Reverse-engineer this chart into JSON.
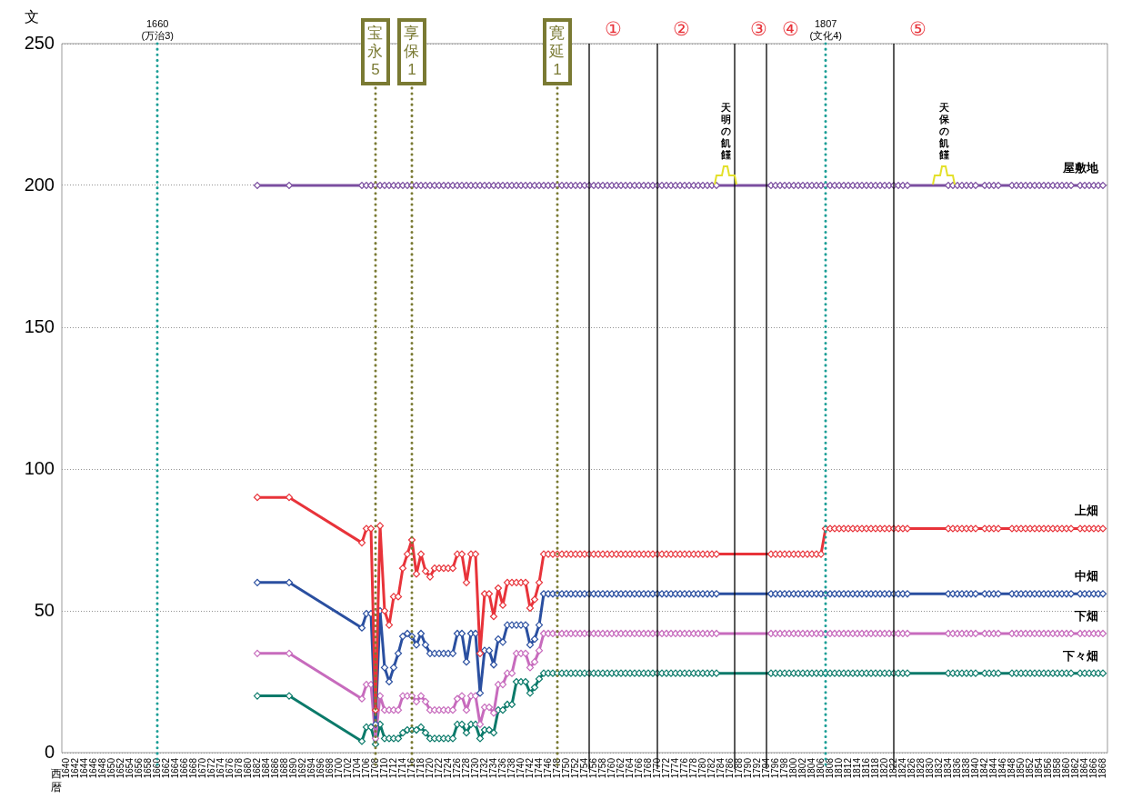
{
  "chart_data": {
    "type": "line",
    "xlabel": "西暦",
    "ylabel": "文",
    "x": [
      1682,
      1689,
      1705,
      1706,
      1707,
      1708,
      1709,
      1710,
      1711,
      1712,
      1713,
      1714,
      1715,
      1716,
      1717,
      1718,
      1719,
      1720,
      1721,
      1722,
      1723,
      1724,
      1725,
      1726,
      1727,
      1728,
      1729,
      1730,
      1731,
      1732,
      1733,
      1734,
      1735,
      1736,
      1737,
      1738,
      1739,
      1740,
      1741,
      1742,
      1743,
      1744,
      1745,
      1746,
      1747,
      1748,
      1749,
      1750,
      1751,
      1752,
      1753,
      1754,
      1755,
      1756,
      1757,
      1758,
      1759,
      1760,
      1761,
      1762,
      1763,
      1764,
      1765,
      1766,
      1767,
      1768,
      1769,
      1770,
      1771,
      1772,
      1773,
      1774,
      1775,
      1776,
      1777,
      1778,
      1779,
      1780,
      1781,
      1782,
      1783,
      1795,
      1796,
      1797,
      1798,
      1799,
      1800,
      1801,
      1802,
      1803,
      1804,
      1805,
      1806,
      1807,
      1808,
      1809,
      1810,
      1811,
      1812,
      1813,
      1814,
      1815,
      1816,
      1817,
      1818,
      1819,
      1820,
      1821,
      1822,
      1823,
      1824,
      1825,
      1834,
      1835,
      1836,
      1837,
      1838,
      1839,
      1840,
      1842,
      1843,
      1844,
      1845,
      1848,
      1849,
      1850,
      1851,
      1852,
      1853,
      1854,
      1855,
      1856,
      1857,
      1858,
      1859,
      1860,
      1861,
      1863,
      1864,
      1865,
      1866,
      1867,
      1868
    ],
    "series": [
      {
        "name": "屋敷地",
        "color": "#7b4ea0",
        "values": [
          200,
          200,
          200,
          200,
          200,
          200,
          200,
          200,
          200,
          200,
          200,
          200,
          200,
          200,
          200,
          200,
          200,
          200,
          200,
          200,
          200,
          200,
          200,
          200,
          200,
          200,
          200,
          200,
          200,
          200,
          200,
          200,
          200,
          200,
          200,
          200,
          200,
          200,
          200,
          200,
          200,
          200,
          200,
          200,
          200,
          200,
          200,
          200,
          200,
          200,
          200,
          200,
          200,
          200,
          200,
          200,
          200,
          200,
          200,
          200,
          200,
          200,
          200,
          200,
          200,
          200,
          200,
          200,
          200,
          200,
          200,
          200,
          200,
          200,
          200,
          200,
          200,
          200,
          200,
          200,
          200,
          200,
          200,
          200,
          200,
          200,
          200,
          200,
          200,
          200,
          200,
          200,
          200,
          200,
          200,
          200,
          200,
          200,
          200,
          200,
          200,
          200,
          200,
          200,
          200,
          200,
          200,
          200,
          200,
          200,
          200,
          200,
          200,
          200,
          200,
          200,
          200,
          200,
          200,
          200,
          200,
          200,
          200,
          200,
          200,
          200,
          200,
          200,
          200,
          200,
          200,
          200,
          200,
          200,
          200,
          200,
          200,
          200,
          200,
          200,
          200,
          200,
          200
        ]
      },
      {
        "name": "上畑",
        "color": "#e8333a",
        "values": [
          90,
          90,
          74,
          79,
          79,
          15,
          80,
          50,
          45,
          55,
          55,
          65,
          70,
          75,
          63,
          70,
          64,
          62,
          65,
          65,
          65,
          65,
          65,
          70,
          70,
          60,
          70,
          70,
          35,
          56,
          56,
          48,
          58,
          52,
          60,
          60,
          60,
          60,
          60,
          51,
          54,
          60,
          70,
          70,
          70,
          70,
          70,
          70,
          70,
          70,
          70,
          70,
          70,
          70,
          70,
          70,
          70,
          70,
          70,
          70,
          70,
          70,
          70,
          70,
          70,
          70,
          70,
          70,
          70,
          70,
          70,
          70,
          70,
          70,
          70,
          70,
          70,
          70,
          70,
          70,
          70,
          70,
          70,
          70,
          70,
          70,
          70,
          70,
          70,
          70,
          70,
          70,
          70,
          79,
          79,
          79,
          79,
          79,
          79,
          79,
          79,
          79,
          79,
          79,
          79,
          79,
          79,
          79,
          79,
          79,
          79,
          79,
          79,
          79,
          79,
          79,
          79,
          79,
          79,
          79,
          79,
          79,
          79,
          79,
          79,
          79,
          79,
          79,
          79,
          79,
          79,
          79,
          79,
          79,
          79,
          79,
          79,
          79,
          79,
          79,
          79,
          79,
          79
        ]
      },
      {
        "name": "中畑",
        "color": "#2a4fa0",
        "values": [
          60,
          60,
          44,
          49,
          49,
          10,
          50,
          30,
          25,
          30,
          35,
          41,
          42,
          41,
          38,
          42,
          38,
          35,
          35,
          35,
          35,
          35,
          35,
          42,
          42,
          32,
          42,
          42,
          21,
          36,
          36,
          31,
          40,
          39,
          45,
          45,
          45,
          45,
          45,
          38,
          40,
          45,
          56,
          56,
          56,
          56,
          56,
          56,
          56,
          56,
          56,
          56,
          56,
          56,
          56,
          56,
          56,
          56,
          56,
          56,
          56,
          56,
          56,
          56,
          56,
          56,
          56,
          56,
          56,
          56,
          56,
          56,
          56,
          56,
          56,
          56,
          56,
          56,
          56,
          56,
          56,
          56,
          56,
          56,
          56,
          56,
          56,
          56,
          56,
          56,
          56,
          56,
          56,
          56,
          56,
          56,
          56,
          56,
          56,
          56,
          56,
          56,
          56,
          56,
          56,
          56,
          56,
          56,
          56,
          56,
          56,
          56,
          56,
          56,
          56,
          56,
          56,
          56,
          56,
          56,
          56,
          56,
          56,
          56,
          56,
          56,
          56,
          56,
          56,
          56,
          56,
          56,
          56,
          56,
          56,
          56,
          56,
          56,
          56,
          56,
          56,
          56,
          56
        ]
      },
      {
        "name": "下畑",
        "color": "#c76bbd",
        "values": [
          35,
          35,
          19,
          24,
          24,
          5,
          20,
          15,
          15,
          15,
          15,
          20,
          20,
          20,
          18,
          20,
          18,
          15,
          15,
          15,
          15,
          15,
          15,
          19,
          20,
          15,
          20,
          20,
          10,
          16,
          16,
          14,
          24,
          24,
          28,
          28,
          35,
          35,
          35,
          30,
          32,
          36,
          42,
          42,
          42,
          42,
          42,
          42,
          42,
          42,
          42,
          42,
          42,
          42,
          42,
          42,
          42,
          42,
          42,
          42,
          42,
          42,
          42,
          42,
          42,
          42,
          42,
          42,
          42,
          42,
          42,
          42,
          42,
          42,
          42,
          42,
          42,
          42,
          42,
          42,
          42,
          42,
          42,
          42,
          42,
          42,
          42,
          42,
          42,
          42,
          42,
          42,
          42,
          42,
          42,
          42,
          42,
          42,
          42,
          42,
          42,
          42,
          42,
          42,
          42,
          42,
          42,
          42,
          42,
          42,
          42,
          42,
          42,
          42,
          42,
          42,
          42,
          42,
          42,
          42,
          42,
          42,
          42,
          42,
          42,
          42,
          42,
          42,
          42,
          42,
          42,
          42,
          42,
          42,
          42,
          42,
          42,
          42,
          42,
          42,
          42,
          42,
          42
        ]
      },
      {
        "name": "下々畑",
        "color": "#0b7a6a",
        "values": [
          20,
          20,
          4,
          9,
          9,
          3,
          10,
          5,
          5,
          5,
          5,
          7,
          8,
          8,
          8,
          9,
          7,
          5,
          5,
          5,
          5,
          5,
          5,
          10,
          10,
          7,
          10,
          10,
          5,
          8,
          8,
          7,
          15,
          15,
          17,
          17,
          25,
          25,
          25,
          21,
          23,
          26,
          28,
          28,
          28,
          28,
          28,
          28,
          28,
          28,
          28,
          28,
          28,
          28,
          28,
          28,
          28,
          28,
          28,
          28,
          28,
          28,
          28,
          28,
          28,
          28,
          28,
          28,
          28,
          28,
          28,
          28,
          28,
          28,
          28,
          28,
          28,
          28,
          28,
          28,
          28,
          28,
          28,
          28,
          28,
          28,
          28,
          28,
          28,
          28,
          28,
          28,
          28,
          28,
          28,
          28,
          28,
          28,
          28,
          28,
          28,
          28,
          28,
          28,
          28,
          28,
          28,
          28,
          28,
          28,
          28,
          28,
          28,
          28,
          28,
          28,
          28,
          28,
          28,
          28,
          28,
          28,
          28,
          28,
          28,
          28,
          28,
          28,
          28,
          28,
          28,
          28,
          28,
          28,
          28,
          28,
          28,
          28,
          28,
          28,
          28,
          28,
          28
        ]
      }
    ],
    "xlim": [
      1639,
      1869
    ],
    "xticks": [
      1640,
      1642,
      1644,
      1646,
      1648,
      1650,
      1652,
      1654,
      1656,
      1658,
      1660,
      1662,
      1664,
      1666,
      1668,
      1670,
      1672,
      1674,
      1676,
      1678,
      1680,
      1682,
      1684,
      1686,
      1688,
      1690,
      1692,
      1694,
      1696,
      1698,
      1700,
      1702,
      1704,
      1706,
      1708,
      1710,
      1712,
      1714,
      1716,
      1718,
      1720,
      1722,
      1724,
      1726,
      1728,
      1730,
      1732,
      1734,
      1736,
      1738,
      1740,
      1742,
      1744,
      1746,
      1748,
      1750,
      1752,
      1754,
      1756,
      1758,
      1760,
      1762,
      1764,
      1766,
      1768,
      1770,
      1772,
      1774,
      1776,
      1778,
      1780,
      1782,
      1784,
      1786,
      1788,
      1790,
      1792,
      1794,
      1796,
      1798,
      1800,
      1802,
      1804,
      1806,
      1808,
      1810,
      1812,
      1814,
      1816,
      1818,
      1820,
      1822,
      1824,
      1826,
      1828,
      1830,
      1832,
      1834,
      1836,
      1838,
      1840,
      1842,
      1844,
      1846,
      1848,
      1850,
      1852,
      1854,
      1856,
      1858,
      1860,
      1862,
      1864,
      1866,
      1868
    ],
    "ylim": [
      0,
      250
    ],
    "yticks": [
      0,
      50,
      100,
      150,
      200,
      250
    ],
    "grid": "y",
    "legend": false,
    "marker": "diamond",
    "line_style": "solid",
    "ref_lines": [
      {
        "axis": "x",
        "value": 1660,
        "label": "1660\n(万治3)",
        "color": "#1a9e96",
        "line_style": "dotted"
      },
      {
        "axis": "x",
        "value": 1708,
        "label": "宝永5",
        "color": "#7a7a33",
        "line_style": "dotted"
      },
      {
        "axis": "x",
        "value": 1716,
        "label": "享保1",
        "color": "#7a7a33",
        "line_style": "dotted"
      },
      {
        "axis": "x",
        "value": 1748,
        "label": "寛延1",
        "color": "#7a7a33",
        "line_style": "dotted"
      },
      {
        "axis": "x",
        "value": 1755,
        "label": "①",
        "color": "#000000",
        "line_style": "solid"
      },
      {
        "axis": "x",
        "value": 1770,
        "label": "②",
        "color": "#000000",
        "line_style": "solid"
      },
      {
        "axis": "x",
        "value": 1787,
        "label": "③",
        "color": "#000000",
        "line_style": "solid"
      },
      {
        "axis": "x",
        "value": 1794,
        "label": "④",
        "color": "#000000",
        "line_style": "solid"
      },
      {
        "axis": "x",
        "value": 1807,
        "label": "1807\n(文化4)",
        "color": "#1a9e96",
        "line_style": "dotted"
      },
      {
        "axis": "x",
        "value": 1822,
        "label": "⑤",
        "color": "#000000",
        "line_style": "solid"
      }
    ],
    "annotations": [
      {
        "text": "天明の飢饉",
        "x": 1785,
        "y": 200
      },
      {
        "text": "天保の飢饉",
        "x": 1833,
        "y": 200
      }
    ]
  }
}
